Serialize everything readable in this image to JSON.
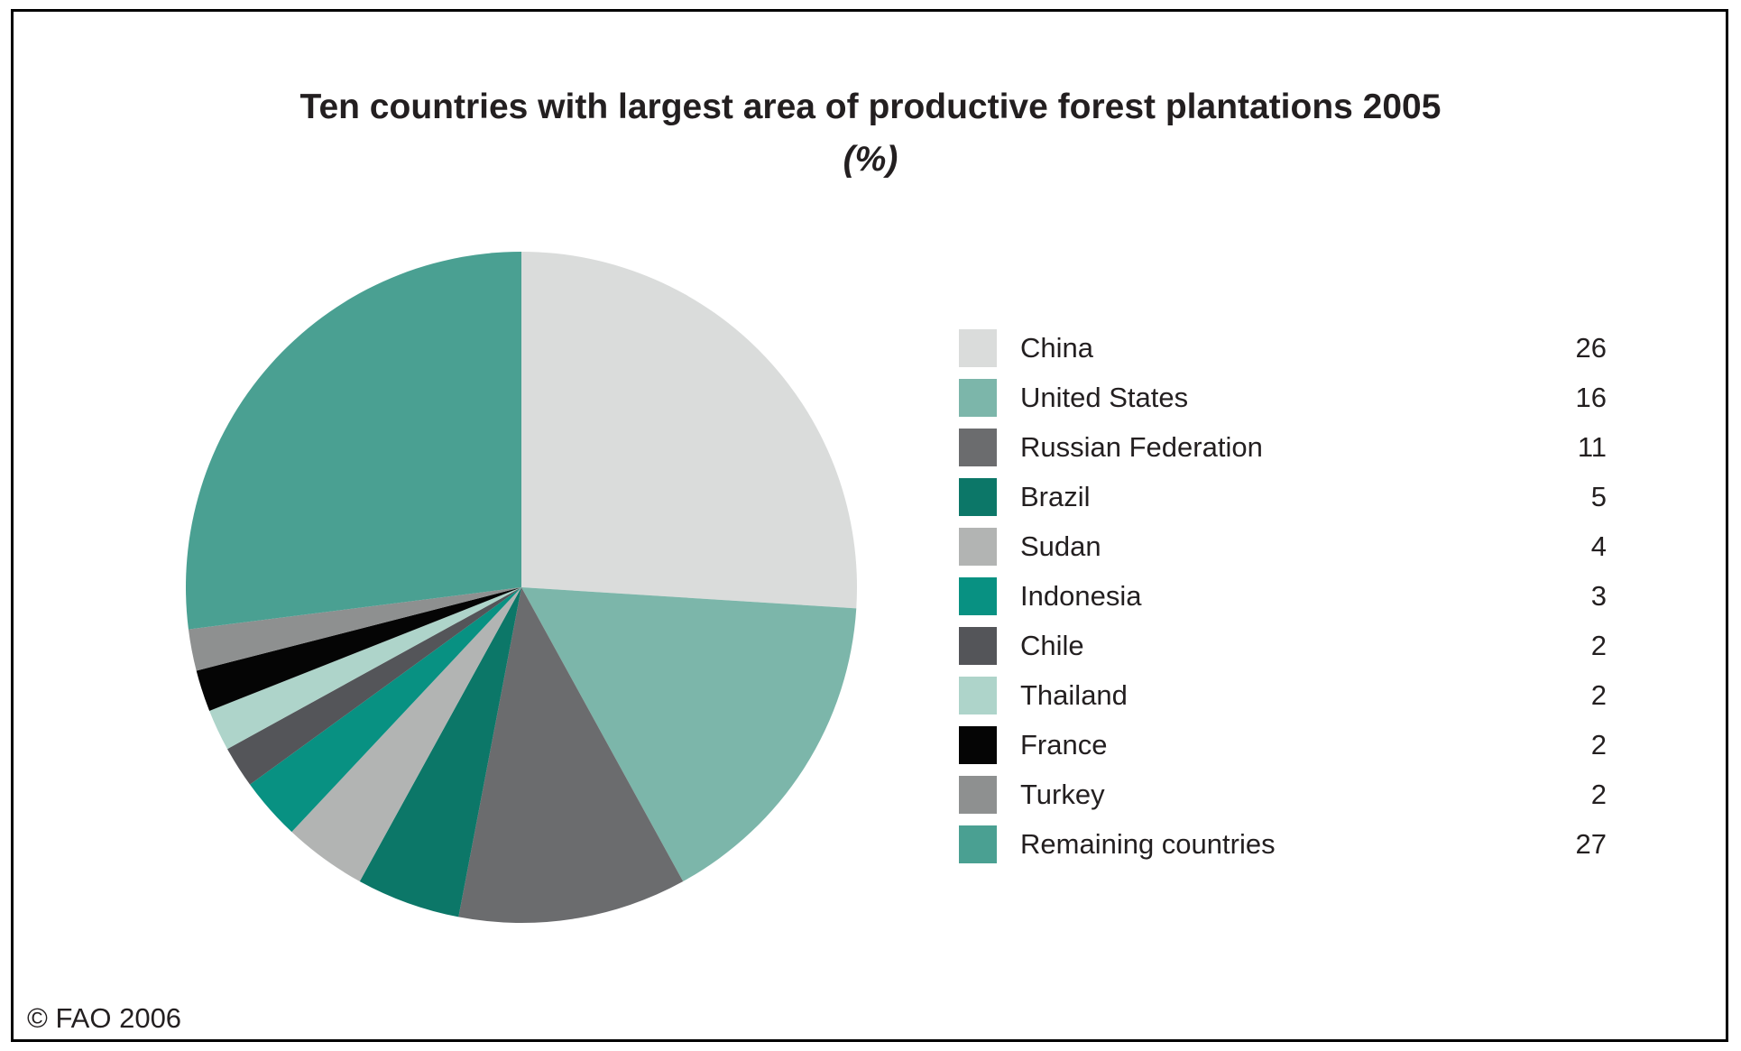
{
  "title": "Ten countries with largest area of productive forest plantations 2005",
  "subtitle": "(%)",
  "footer": "© FAO 2006",
  "chart_data": {
    "type": "pie",
    "title": "Ten countries with largest area of productive forest plantations 2005 (%)",
    "unit": "percent",
    "start_angle_deg": 0,
    "direction": "clockwise",
    "legend_position": "right",
    "slices": [
      {
        "label": "China",
        "value": 26,
        "color": "#dadcdb"
      },
      {
        "label": "United States",
        "value": 16,
        "color": "#7cb6aa"
      },
      {
        "label": "Russian Federation",
        "value": 11,
        "color": "#6b6c6e"
      },
      {
        "label": "Brazil",
        "value": 5,
        "color": "#0c7768"
      },
      {
        "label": "Sudan",
        "value": 4,
        "color": "#b2b4b3"
      },
      {
        "label": "Indonesia",
        "value": 3,
        "color": "#089182"
      },
      {
        "label": "Chile",
        "value": 2,
        "color": "#545559"
      },
      {
        "label": "Thailand",
        "value": 2,
        "color": "#aed4ca"
      },
      {
        "label": "France",
        "value": 2,
        "color": "#050505"
      },
      {
        "label": "Turkey",
        "value": 2,
        "color": "#8e9090"
      },
      {
        "label": "Remaining countries",
        "value": 27,
        "color": "#4aa092"
      }
    ]
  }
}
